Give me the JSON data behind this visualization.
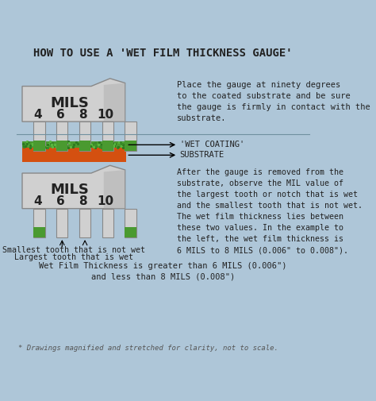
{
  "title": "HOW TO USE A 'WET FILM THICKNESS GAUGE'",
  "bg_color": "#aec6d8",
  "gauge_label": "MILS",
  "gauge_numbers": [
    "4",
    "6",
    "8",
    "10"
  ],
  "text_top_right": "Place the gauge at ninety degrees\nto the coated substrate and be sure\nthe gauge is firmly in contact with the\nsubstrate.",
  "label_wet_coating": "'WET COATING'",
  "label_substrate": "SUBSTRATE",
  "text_bottom_right": "After the gauge is removed from the\nsubstrate, observe the MIL value of\nthe largest tooth or notch that is wet\nand the smallest tooth that is not wet.\nThe wet film thickness lies between\nthese two values. In the example to\nthe left, the wet film thickness is\n6 MILS to 8 MILS (0.006\" to 0.008\").",
  "label_smallest": "Smallest tooth that is not wet",
  "label_largest": "Largest tooth that is wet",
  "label_thickness": "Wet Film Thickness is greater than 6 MILS (0.006\")\nand less than 8 MILS (0.008\")",
  "footnote": "* Drawings magnified and stretched for clarity, not to scale.",
  "gauge_color_light": "#d0d0d0",
  "gauge_color_dark": "#888888",
  "green_color": "#4a9a30",
  "orange_color": "#d45010",
  "substrate_color": "#b0b0b0",
  "text_color": "#333333",
  "dark_text": "#222222"
}
